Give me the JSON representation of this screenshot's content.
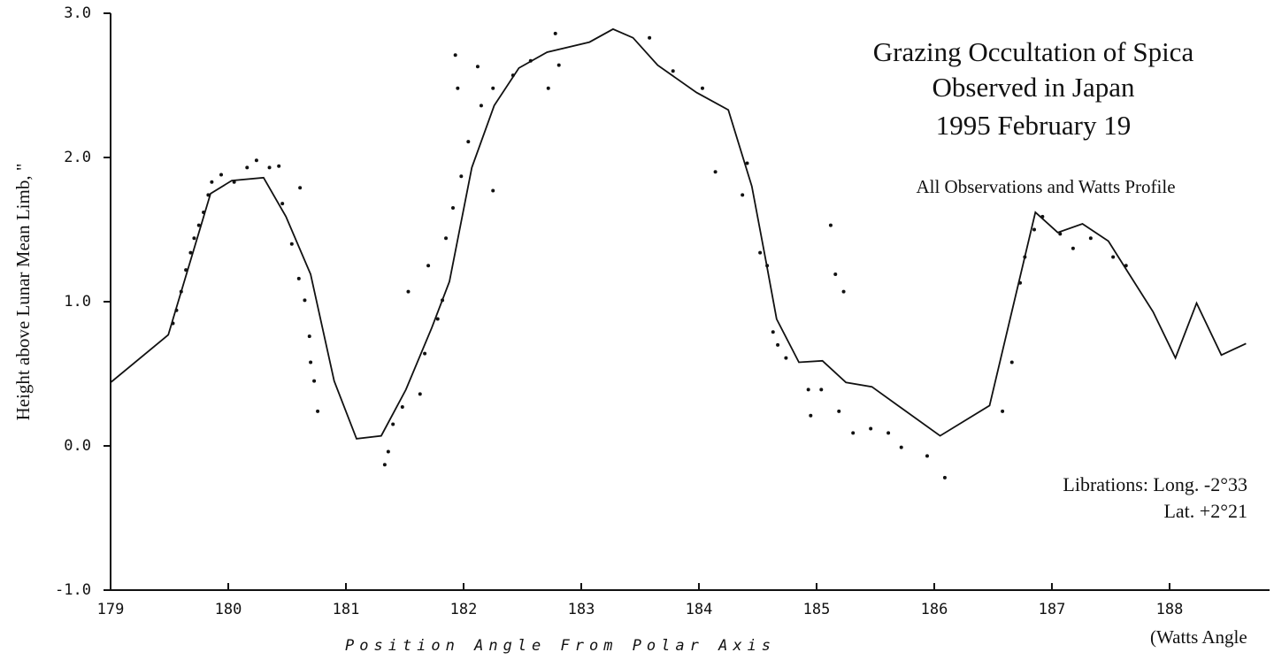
{
  "chart_data": {
    "type": "line",
    "title": [
      "Grazing Occultation of Spica",
      "Observed in Japan",
      "1995 February 19"
    ],
    "subtitle": "All Observations and Watts Profile",
    "annotations": [
      "Librations: Long. -2°33",
      "Lat.  +2°21"
    ],
    "x_label": "Position Angle From Polar Axis",
    "x_label_note": "(Watts Angle",
    "y_label": "Height above Lunar Mean Limb, \"",
    "xlim": [
      179,
      188.85
    ],
    "ylim": [
      -1,
      3
    ],
    "xticks": [
      179,
      180,
      181,
      182,
      183,
      184,
      185,
      186,
      187,
      188
    ],
    "yticks": [
      {
        "value": 3,
        "label": "3.0"
      },
      {
        "value": 2,
        "label": "2.0"
      },
      {
        "value": 1,
        "label": "1.0"
      },
      {
        "value": 0,
        "label": "0.0"
      },
      {
        "value": -1,
        "label": "-1.0"
      }
    ],
    "series": [
      {
        "type": "line",
        "color": "#111111",
        "x": [
          179.0,
          179.49,
          179.85,
          180.03,
          180.3,
          180.49,
          180.7,
          180.9,
          181.09,
          181.3,
          181.51,
          181.73,
          181.88,
          182.07,
          182.26,
          182.47,
          182.71,
          183.07,
          183.27,
          183.44,
          183.65,
          183.98,
          184.25,
          184.45,
          184.57,
          184.66,
          184.85,
          185.05,
          185.25,
          185.47,
          186.05,
          186.47,
          186.86,
          187.05,
          187.26,
          187.48,
          187.65,
          187.86,
          188.05,
          188.23,
          188.44,
          188.65
        ],
        "values": [
          0.44,
          0.77,
          1.75,
          1.84,
          1.86,
          1.59,
          1.19,
          0.45,
          0.05,
          0.07,
          0.39,
          0.82,
          1.14,
          1.93,
          2.36,
          2.62,
          2.73,
          2.8,
          2.89,
          2.83,
          2.64,
          2.45,
          2.33,
          1.8,
          1.28,
          0.88,
          0.58,
          0.59,
          0.44,
          0.41,
          0.07,
          0.28,
          1.62,
          1.48,
          1.54,
          1.42,
          1.2,
          0.93,
          0.61,
          0.99,
          0.63,
          0.71
        ]
      },
      {
        "type": "scatter",
        "color": "#111111",
        "x": [
          179.53,
          179.56,
          179.6,
          179.64,
          179.68,
          179.71,
          179.75,
          179.79,
          179.83,
          179.86,
          179.94,
          180.05,
          180.16,
          180.24,
          180.35,
          180.43,
          180.46,
          180.54,
          180.61,
          180.6,
          180.65,
          180.69,
          180.7,
          180.73,
          180.76,
          181.33,
          181.36,
          181.4,
          181.48,
          181.53,
          181.63,
          181.67,
          181.7,
          181.78,
          181.82,
          181.85,
          181.91,
          181.93,
          181.95,
          181.98,
          182.04,
          182.12,
          182.15,
          182.25,
          182.25,
          182.42,
          182.57,
          182.72,
          182.78,
          182.81,
          183.58,
          183.78,
          184.03,
          184.14,
          184.37,
          184.41,
          184.52,
          184.58,
          184.63,
          184.67,
          184.74,
          184.93,
          184.95,
          185.04,
          185.12,
          185.16,
          185.23,
          185.19,
          185.31,
          185.46,
          185.61,
          185.72,
          185.94,
          186.09,
          186.58,
          186.66,
          186.73,
          186.77,
          186.85,
          186.92,
          187.07,
          187.18,
          187.33,
          187.52,
          187.63
        ],
        "values": [
          0.85,
          0.94,
          1.07,
          1.22,
          1.34,
          1.44,
          1.53,
          1.62,
          1.74,
          1.83,
          1.88,
          1.83,
          1.93,
          1.98,
          1.93,
          1.94,
          1.68,
          1.4,
          1.79,
          1.16,
          1.01,
          0.76,
          0.58,
          0.45,
          0.24,
          -0.13,
          -0.04,
          0.15,
          0.27,
          1.07,
          0.36,
          0.64,
          1.25,
          0.88,
          1.01,
          1.44,
          1.65,
          2.71,
          2.48,
          1.87,
          2.11,
          2.63,
          2.36,
          2.48,
          1.77,
          2.57,
          2.67,
          2.48,
          2.86,
          2.64,
          2.83,
          2.6,
          2.48,
          1.9,
          1.74,
          1.96,
          1.34,
          1.25,
          0.79,
          0.7,
          0.61,
          0.39,
          0.21,
          0.39,
          1.53,
          1.19,
          1.07,
          0.24,
          0.09,
          0.12,
          0.09,
          -0.01,
          -0.07,
          -0.22,
          0.24,
          0.58,
          1.13,
          1.31,
          1.5,
          1.59,
          1.47,
          1.37,
          1.44,
          1.31,
          1.25
        ]
      }
    ]
  }
}
